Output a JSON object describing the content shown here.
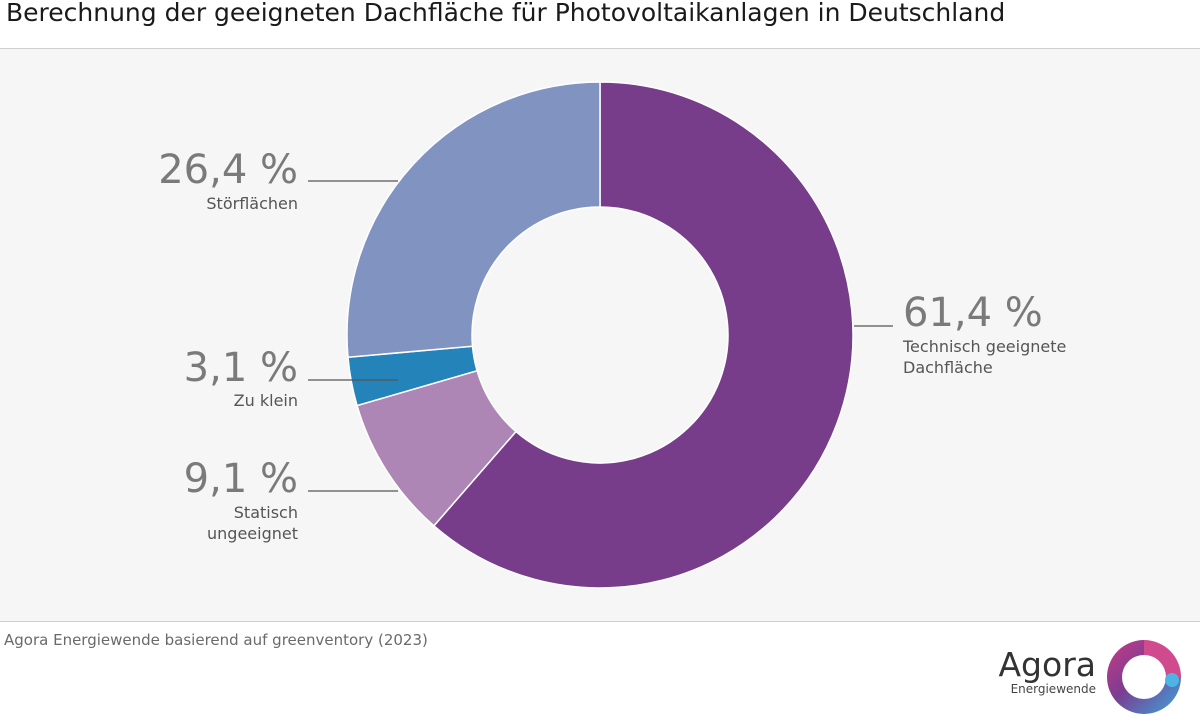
{
  "chart_data": {
    "type": "pie",
    "title": "Berechnung der geeigneten Dachfläche für Photovoltaikanlagen in Deutschland",
    "subtype": "donut",
    "slices": [
      {
        "label_lines": [
          "Technisch geeignete",
          "Dachfläche"
        ],
        "value": 61.4,
        "value_text": "61,4 %",
        "color": "#773d8a"
      },
      {
        "label_lines": [
          "Statisch",
          "ungeeignet"
        ],
        "value": 9.1,
        "value_text": "9,1 %",
        "color": "#ad86b5"
      },
      {
        "label_lines": [
          "Zu klein"
        ],
        "value": 3.1,
        "value_text": "3,1 %",
        "color": "#2483b8"
      },
      {
        "label_lines": [
          "Störflächen"
        ],
        "value": 26.4,
        "value_text": "26,4 %",
        "color": "#8193c1"
      }
    ],
    "source": "Agora Energiewende basierend auf greenventory (2023)"
  },
  "logo": {
    "name": "Agora",
    "subtitle": "Energiewende"
  }
}
